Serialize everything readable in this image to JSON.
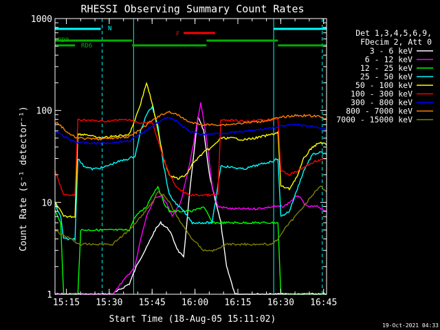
{
  "chart_data": {
    "type": "line",
    "title": "RHESSI Observing Summary Count Rates",
    "xlabel": "Start Time (18-Aug-05 15:11:02)",
    "ylabel": "Count Rate (s⁻¹ detector⁻¹)",
    "x_unit": "minutes since 15:11:02",
    "xlim": [
      0,
      95
    ],
    "ylim": [
      1,
      1000
    ],
    "yscale": "log",
    "xticks": [
      {
        "label": "15:15",
        "value": 3.97
      },
      {
        "label": "15:30",
        "value": 18.97
      },
      {
        "label": "15:45",
        "value": 33.97
      },
      {
        "label": "16:00",
        "value": 48.97
      },
      {
        "label": "16:15",
        "value": 63.97
      },
      {
        "label": "16:30",
        "value": 78.97
      },
      {
        "label": "16:45",
        "value": 93.97
      }
    ],
    "yticks": [
      {
        "label": "1",
        "value": 1
      },
      {
        "label": "10",
        "value": 10
      },
      {
        "label": "100",
        "value": 100
      },
      {
        "label": "1000",
        "value": 1000
      }
    ],
    "legend": {
      "header": [
        "Det 1,3,4,5,6,9,",
        "FDecim 2, Att 0"
      ],
      "placement": "right"
    },
    "series": [
      {
        "name": "3 - 6 keV",
        "color": "#ffffff",
        "points": [
          [
            0,
            1
          ],
          [
            8,
            1
          ],
          [
            20,
            1
          ],
          [
            26,
            1.3
          ],
          [
            29,
            2.2
          ],
          [
            32,
            3.2
          ],
          [
            35,
            5
          ],
          [
            37,
            6
          ],
          [
            40,
            5
          ],
          [
            43,
            3
          ],
          [
            45,
            2.5
          ],
          [
            47,
            12
          ],
          [
            50,
            85
          ],
          [
            52,
            60
          ],
          [
            54,
            20
          ],
          [
            58,
            6
          ],
          [
            60,
            2
          ],
          [
            63,
            1
          ],
          [
            78,
            1
          ],
          [
            95,
            1
          ]
        ]
      },
      {
        "name": "6 - 12 keV",
        "color": "#ff00ff",
        "points": [
          [
            0,
            1
          ],
          [
            20,
            1
          ],
          [
            28,
            2
          ],
          [
            30,
            4
          ],
          [
            32,
            7
          ],
          [
            35,
            11
          ],
          [
            37,
            12
          ],
          [
            39,
            10
          ],
          [
            41,
            7
          ],
          [
            44,
            10
          ],
          [
            47,
            25
          ],
          [
            50,
            80
          ],
          [
            51,
            120
          ],
          [
            53,
            50
          ],
          [
            55,
            15
          ],
          [
            57,
            9
          ],
          [
            62,
            8.5
          ],
          [
            70,
            8.5
          ],
          [
            77,
            9
          ],
          [
            78,
            9
          ],
          [
            80,
            9
          ],
          [
            82,
            10
          ],
          [
            85,
            12
          ],
          [
            88,
            9
          ],
          [
            92,
            9
          ],
          [
            95,
            8
          ]
        ]
      },
      {
        "name": "12 - 25 keV",
        "color": "#00ff00",
        "points": [
          [
            0,
            8
          ],
          [
            1,
            7
          ],
          [
            2,
            6
          ],
          [
            3,
            1
          ],
          [
            8,
            1
          ],
          [
            9,
            5
          ],
          [
            15,
            5
          ],
          [
            21,
            5
          ],
          [
            26,
            5
          ],
          [
            28,
            7
          ],
          [
            32,
            9
          ],
          [
            34,
            12
          ],
          [
            36,
            15
          ],
          [
            38,
            10
          ],
          [
            40,
            8
          ],
          [
            44,
            8
          ],
          [
            48,
            8
          ],
          [
            52,
            9
          ],
          [
            55,
            6
          ],
          [
            58,
            6
          ],
          [
            70,
            6
          ],
          [
            78,
            6
          ],
          [
            79,
            1
          ],
          [
            90,
            1
          ],
          [
            95,
            1
          ]
        ]
      },
      {
        "name": "25 - 50 keV",
        "color": "#00ffff",
        "points": [
          [
            0,
            10
          ],
          [
            1,
            8
          ],
          [
            2,
            7
          ],
          [
            3,
            4
          ],
          [
            7,
            4
          ],
          [
            8,
            30
          ],
          [
            10,
            25
          ],
          [
            13,
            23
          ],
          [
            17,
            24
          ],
          [
            21,
            27
          ],
          [
            26,
            30
          ],
          [
            28,
            32
          ],
          [
            30,
            60
          ],
          [
            32,
            90
          ],
          [
            34,
            110
          ],
          [
            36,
            70
          ],
          [
            38,
            25
          ],
          [
            40,
            12
          ],
          [
            42,
            10
          ],
          [
            45,
            8
          ],
          [
            48,
            6
          ],
          [
            52,
            6
          ],
          [
            55,
            6
          ],
          [
            58,
            25
          ],
          [
            62,
            24
          ],
          [
            66,
            23
          ],
          [
            70,
            25
          ],
          [
            76,
            28
          ],
          [
            78,
            30
          ],
          [
            79,
            7
          ],
          [
            82,
            8
          ],
          [
            84,
            12
          ],
          [
            87,
            22
          ],
          [
            90,
            33
          ],
          [
            93,
            35
          ],
          [
            95,
            33
          ]
        ]
      },
      {
        "name": "50 - 100 keV",
        "color": "#ffff00",
        "points": [
          [
            0,
            10
          ],
          [
            1,
            9
          ],
          [
            2,
            8
          ],
          [
            3,
            7
          ],
          [
            7,
            7
          ],
          [
            8,
            55
          ],
          [
            11,
            55
          ],
          [
            15,
            50
          ],
          [
            20,
            52
          ],
          [
            26,
            55
          ],
          [
            28,
            80
          ],
          [
            30,
            120
          ],
          [
            32,
            200
          ],
          [
            34,
            120
          ],
          [
            36,
            60
          ],
          [
            38,
            30
          ],
          [
            40,
            20
          ],
          [
            43,
            18
          ],
          [
            46,
            20
          ],
          [
            48,
            26
          ],
          [
            52,
            35
          ],
          [
            55,
            40
          ],
          [
            58,
            50
          ],
          [
            62,
            50
          ],
          [
            66,
            48
          ],
          [
            70,
            50
          ],
          [
            76,
            55
          ],
          [
            78,
            58
          ],
          [
            79,
            15
          ],
          [
            82,
            14
          ],
          [
            85,
            20
          ],
          [
            87,
            30
          ],
          [
            90,
            40
          ],
          [
            93,
            45
          ],
          [
            95,
            42
          ]
        ]
      },
      {
        "name": "100 - 300 keV",
        "color": "#ff0000",
        "points": [
          [
            0,
            22
          ],
          [
            1,
            18
          ],
          [
            2,
            15
          ],
          [
            3,
            12
          ],
          [
            7,
            12
          ],
          [
            8,
            80
          ],
          [
            12,
            78
          ],
          [
            17,
            76
          ],
          [
            21,
            78
          ],
          [
            26,
            80
          ],
          [
            28,
            75
          ],
          [
            30,
            72
          ],
          [
            34,
            75
          ],
          [
            38,
            30
          ],
          [
            40,
            20
          ],
          [
            43,
            14
          ],
          [
            47,
            12
          ],
          [
            50,
            12
          ],
          [
            55,
            12
          ],
          [
            57,
            12
          ],
          [
            58,
            78
          ],
          [
            62,
            78
          ],
          [
            66,
            76
          ],
          [
            70,
            78
          ],
          [
            76,
            80
          ],
          [
            78,
            82
          ],
          [
            79,
            22
          ],
          [
            82,
            20
          ],
          [
            85,
            22
          ],
          [
            88,
            25
          ],
          [
            91,
            28
          ],
          [
            95,
            30
          ]
        ]
      },
      {
        "name": "300 - 800 keV",
        "color": "#0000ff",
        "points": [
          [
            0,
            60
          ],
          [
            2,
            55
          ],
          [
            5,
            48
          ],
          [
            8,
            45
          ],
          [
            12,
            44
          ],
          [
            16,
            44
          ],
          [
            21,
            45
          ],
          [
            26,
            47
          ],
          [
            30,
            55
          ],
          [
            34,
            68
          ],
          [
            38,
            80
          ],
          [
            40,
            85
          ],
          [
            42,
            78
          ],
          [
            44,
            70
          ],
          [
            46,
            62
          ],
          [
            48,
            58
          ],
          [
            52,
            55
          ],
          [
            56,
            56
          ],
          [
            60,
            57
          ],
          [
            64,
            58
          ],
          [
            68,
            60
          ],
          [
            72,
            62
          ],
          [
            76,
            65
          ],
          [
            80,
            68
          ],
          [
            84,
            70
          ],
          [
            88,
            68
          ],
          [
            92,
            66
          ],
          [
            95,
            62
          ]
        ]
      },
      {
        "name": "800 - 7000 keV",
        "color": "#ff8000",
        "points": [
          [
            0,
            75
          ],
          [
            2,
            68
          ],
          [
            5,
            55
          ],
          [
            8,
            50
          ],
          [
            12,
            49
          ],
          [
            16,
            49
          ],
          [
            21,
            50
          ],
          [
            26,
            52
          ],
          [
            30,
            62
          ],
          [
            34,
            78
          ],
          [
            38,
            92
          ],
          [
            40,
            97
          ],
          [
            42,
            92
          ],
          [
            44,
            85
          ],
          [
            46,
            78
          ],
          [
            48,
            73
          ],
          [
            52,
            70
          ],
          [
            56,
            70
          ],
          [
            60,
            70
          ],
          [
            64,
            72
          ],
          [
            68,
            74
          ],
          [
            72,
            76
          ],
          [
            76,
            80
          ],
          [
            80,
            85
          ],
          [
            84,
            88
          ],
          [
            88,
            88
          ],
          [
            92,
            86
          ],
          [
            95,
            82
          ]
        ]
      },
      {
        "name": "7000 - 15000 keV",
        "color": "#808000",
        "points": [
          [
            0,
            5
          ],
          [
            2,
            4.5
          ],
          [
            6,
            4
          ],
          [
            8,
            3.5
          ],
          [
            12,
            3.5
          ],
          [
            16,
            3.5
          ],
          [
            20,
            3.5
          ],
          [
            26,
            5
          ],
          [
            30,
            7
          ],
          [
            34,
            10
          ],
          [
            36,
            13
          ],
          [
            38,
            12
          ],
          [
            40,
            10
          ],
          [
            44,
            6
          ],
          [
            48,
            4
          ],
          [
            52,
            3
          ],
          [
            56,
            3
          ],
          [
            60,
            3.5
          ],
          [
            64,
            3.5
          ],
          [
            68,
            3.5
          ],
          [
            72,
            3.5
          ],
          [
            76,
            3.5
          ],
          [
            78,
            4
          ],
          [
            80,
            5
          ],
          [
            84,
            7
          ],
          [
            88,
            10
          ],
          [
            91,
            13
          ],
          [
            93,
            15
          ],
          [
            95,
            13
          ]
        ]
      }
    ],
    "annotations": [
      {
        "label": "N",
        "color": "#00ffff"
      },
      {
        "label": "F",
        "color": "#ff0000"
      },
      {
        "label": "RD0",
        "color": "#00b000"
      },
      {
        "label": "RD6",
        "color": "#00b000"
      }
    ],
    "state_bars": {
      "night": [
        [
          0,
          16
        ],
        [
          76.5,
          95
        ]
      ],
      "flare": [
        [
          45,
          56
        ]
      ],
      "decim_high": [
        [
          0,
          27
        ],
        [
          53,
          78
        ]
      ],
      "decim_low": [
        [
          0,
          7
        ],
        [
          27,
          53
        ],
        [
          78,
          95
        ]
      ]
    },
    "cyan_dashed_x": [
      16.5,
      93.5
    ],
    "cyan_solid_x": [
      0,
      27.5,
      76.5
    ]
  },
  "footer": {
    "timestamp": "19-Oct-2021 04:33"
  }
}
